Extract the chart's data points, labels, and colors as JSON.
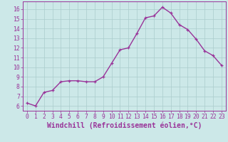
{
  "x": [
    0,
    1,
    2,
    3,
    4,
    5,
    6,
    7,
    8,
    9,
    10,
    11,
    12,
    13,
    14,
    15,
    16,
    17,
    18,
    19,
    20,
    21,
    22,
    23
  ],
  "y": [
    6.3,
    6.0,
    7.4,
    7.6,
    8.5,
    8.6,
    8.6,
    8.5,
    8.5,
    9.0,
    10.4,
    11.8,
    12.0,
    13.5,
    15.1,
    15.3,
    16.2,
    15.6,
    14.4,
    13.9,
    12.9,
    11.7,
    11.2,
    10.2
  ],
  "line_color": "#993399",
  "marker": "+",
  "background_color": "#cce8e8",
  "grid_color": "#aacccc",
  "xlabel": "Windchill (Refroidissement éolien,°C)",
  "xlim": [
    -0.5,
    23.5
  ],
  "ylim": [
    5.5,
    16.8
  ],
  "yticks": [
    6,
    7,
    8,
    9,
    10,
    11,
    12,
    13,
    14,
    15,
    16
  ],
  "xticks": [
    0,
    1,
    2,
    3,
    4,
    5,
    6,
    7,
    8,
    9,
    10,
    11,
    12,
    13,
    14,
    15,
    16,
    17,
    18,
    19,
    20,
    21,
    22,
    23
  ],
  "tick_label_fontsize": 5.8,
  "xlabel_fontsize": 7.0,
  "line_width": 1.0,
  "marker_size": 3.5,
  "marker_edge_width": 0.9
}
